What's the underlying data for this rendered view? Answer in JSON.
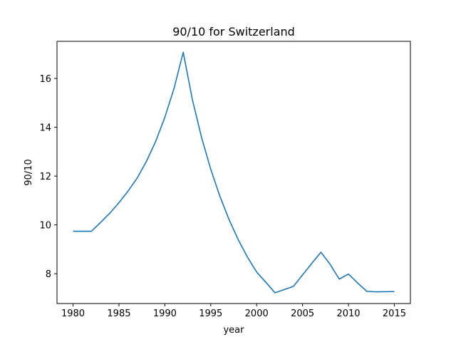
{
  "chart_data": {
    "type": "line",
    "title": "90/10 for Switzerland",
    "xlabel": "year",
    "ylabel": "90/10",
    "xlim": [
      1978.25,
      2016.75
    ],
    "ylim": [
      6.78,
      17.52
    ],
    "xticks": [
      1980,
      1985,
      1990,
      1995,
      2000,
      2005,
      2010,
      2015
    ],
    "yticks": [
      8,
      10,
      12,
      14,
      16
    ],
    "grid": false,
    "series": [
      {
        "color": "#1f77b4",
        "x": [
          1980,
          1982,
          1983,
          1984,
          1985,
          1986,
          1987,
          1988,
          1989,
          1990,
          1991,
          1992,
          1993,
          1994,
          1995,
          1996,
          1997,
          1998,
          1999,
          2000,
          2001,
          2002,
          2004,
          2005,
          2006,
          2007,
          2008,
          2009,
          2010,
          2011,
          2012,
          2013,
          2015
        ],
        "y": [
          9.74,
          9.74,
          10.1,
          10.48,
          10.91,
          11.39,
          11.93,
          12.61,
          13.42,
          14.41,
          15.59,
          17.07,
          15.13,
          13.58,
          12.28,
          11.17,
          10.21,
          9.39,
          8.68,
          8.07,
          7.65,
          7.22,
          7.48,
          7.95,
          8.42,
          8.88,
          8.39,
          7.78,
          7.99,
          7.62,
          7.28,
          7.26,
          7.27
        ]
      }
    ]
  }
}
